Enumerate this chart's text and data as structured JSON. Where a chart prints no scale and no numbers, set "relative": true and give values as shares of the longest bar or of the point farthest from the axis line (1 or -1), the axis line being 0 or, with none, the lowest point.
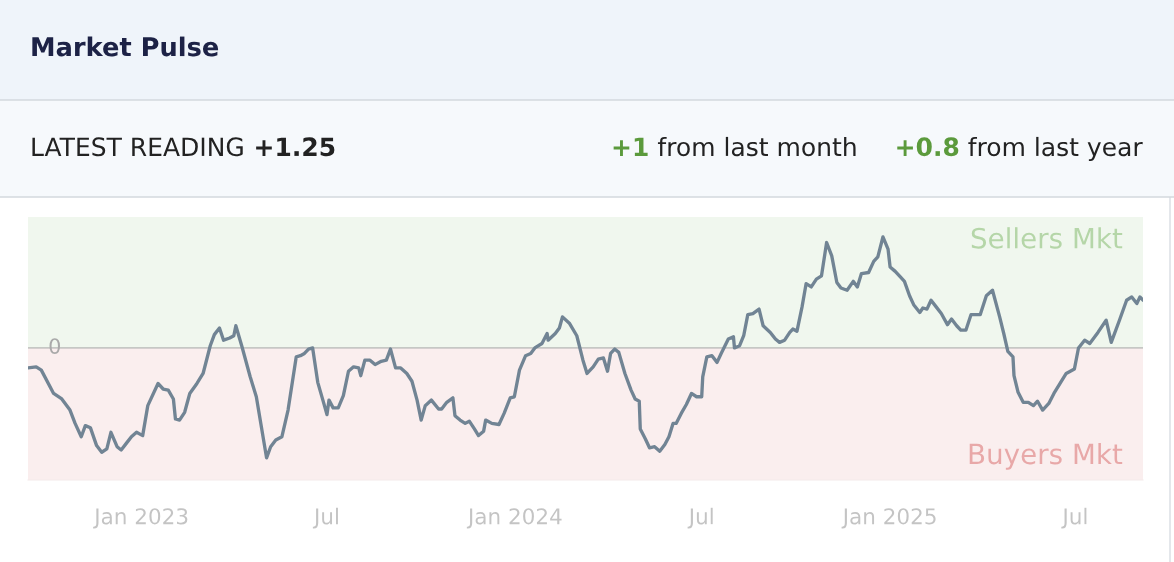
{
  "chart_data": {
    "type": "line",
    "title": "Market Pulse",
    "relative": true,
    "annotations": [
      "LATEST READING",
      "+1.25",
      "+1",
      "from last month",
      "+0.8",
      "from last year"
    ],
    "x": [
      "2022-09-12",
      "2022-09-20",
      "2022-09-25",
      "2022-10-07",
      "2022-10-15",
      "2022-10-23",
      "2022-10-28",
      "2022-11-03",
      "2022-11-07",
      "2022-11-12",
      "2022-11-18",
      "2022-11-23",
      "2022-11-28",
      "2022-12-02",
      "2022-12-08",
      "2022-12-12",
      "2022-12-17",
      "2022-12-22",
      "2022-12-27",
      "2023-01-02",
      "2023-01-07",
      "2023-01-17",
      "2023-01-22",
      "2023-01-27",
      "2023-02-01",
      "2023-02-03",
      "2023-02-07",
      "2023-02-12",
      "2023-02-17",
      "2023-02-24",
      "2023-03-02",
      "2023-03-09",
      "2023-03-13",
      "2023-03-18",
      "2023-03-22",
      "2023-03-28",
      "2023-04-01",
      "2023-04-03",
      "2023-04-09",
      "2023-04-17",
      "2023-04-23",
      "2023-05-03",
      "2023-05-07",
      "2023-05-12",
      "2023-05-18",
      "2023-05-24",
      "2023-06-01",
      "2023-06-05",
      "2023-06-09",
      "2023-06-13",
      "2023-06-17",
      "2023-06-22",
      "2023-06-27",
      "2023-07-01",
      "2023-07-03",
      "2023-07-07",
      "2023-07-12",
      "2023-07-17",
      "2023-07-22",
      "2023-07-27",
      "2023-08-01",
      "2023-08-03",
      "2023-08-07",
      "2023-08-12",
      "2023-08-17",
      "2023-08-23",
      "2023-08-28",
      "2023-09-01",
      "2023-09-06",
      "2023-09-11",
      "2023-09-17",
      "2023-09-22",
      "2023-09-27",
      "2023-10-01",
      "2023-10-05",
      "2023-10-11",
      "2023-10-18",
      "2023-10-21",
      "2023-10-26",
      "2023-11-01",
      "2023-11-03",
      "2023-11-08",
      "2023-11-13",
      "2023-11-17",
      "2023-11-22",
      "2023-11-26",
      "2023-12-01",
      "2023-12-03",
      "2023-12-09",
      "2023-12-16",
      "2023-12-21",
      "2023-12-27",
      "2023-12-31",
      "2024-01-05",
      "2024-01-11",
      "2024-01-16",
      "2024-01-20",
      "2024-01-27",
      "2024-02-01",
      "2024-02-02",
      "2024-02-09",
      "2024-02-13",
      "2024-02-16",
      "2024-02-23",
      "2024-03-01",
      "2024-03-07",
      "2024-03-11",
      "2024-03-17",
      "2024-03-22",
      "2024-03-27",
      "2024-03-31",
      "2024-04-03",
      "2024-04-07",
      "2024-04-11",
      "2024-04-17",
      "2024-04-23",
      "2024-04-27",
      "2024-05-01",
      "2024-05-02",
      "2024-05-07",
      "2024-05-11",
      "2024-05-16",
      "2024-05-21",
      "2024-05-26",
      "2024-05-30",
      "2024-06-03",
      "2024-06-06",
      "2024-06-11",
      "2024-06-16",
      "2024-06-21",
      "2024-06-26",
      "2024-07-01",
      "2024-07-02",
      "2024-07-06",
      "2024-07-11",
      "2024-07-16",
      "2024-07-20",
      "2024-07-27",
      "2024-08-01",
      "2024-08-02",
      "2024-08-07",
      "2024-08-11",
      "2024-08-15",
      "2024-08-20",
      "2024-08-26",
      "2024-08-30",
      "2024-09-06",
      "2024-09-11",
      "2024-09-15",
      "2024-09-20",
      "2024-09-25",
      "2024-09-28",
      "2024-10-02",
      "2024-10-07",
      "2024-10-11",
      "2024-10-16",
      "2024-10-21",
      "2024-10-26",
      "2024-10-31",
      "2024-11-05",
      "2024-11-10",
      "2024-11-14",
      "2024-11-20",
      "2024-11-26",
      "2024-11-30",
      "2024-12-04",
      "2024-12-11",
      "2024-12-16",
      "2024-12-20",
      "2024-12-25",
      "2024-12-30",
      "2025-01-01",
      "2025-01-06",
      "2025-01-11",
      "2025-01-15",
      "2025-01-20",
      "2025-01-24",
      "2025-01-30",
      "2025-02-02",
      "2025-02-06",
      "2025-02-10",
      "2025-02-15",
      "2025-02-20",
      "2025-02-26",
      "2025-03-02",
      "2025-03-07",
      "2025-03-11",
      "2025-03-16",
      "2025-03-21",
      "2025-03-30",
      "2025-04-05",
      "2025-04-11",
      "2025-04-18",
      "2025-04-22",
      "2025-04-26",
      "2025-05-01",
      "2025-05-02",
      "2025-05-06",
      "2025-05-11",
      "2025-05-16",
      "2025-05-21",
      "2025-05-25",
      "2025-05-30",
      "2025-06-05",
      "2025-06-10",
      "2025-06-16",
      "2025-06-22",
      "2025-06-30",
      "2025-07-04",
      "2025-07-10",
      "2025-07-15",
      "2025-07-23",
      "2025-07-31",
      "2025-08-05",
      "2025-08-13",
      "2025-08-20",
      "2025-08-25",
      "2025-08-30",
      "2025-09-02",
      "2025-09-05"
    ],
    "series": [
      {
        "color": "#718494",
        "line_style": "solid",
        "values": [
          -0.18,
          -0.17,
          -0.2,
          -0.41,
          -0.46,
          -0.56,
          -0.68,
          -0.8,
          -0.7,
          -0.72,
          -0.88,
          -0.94,
          -0.91,
          -0.76,
          -0.89,
          -0.92,
          -0.86,
          -0.8,
          -0.76,
          -0.79,
          -0.52,
          -0.32,
          -0.37,
          -0.38,
          -0.46,
          -0.64,
          -0.65,
          -0.58,
          -0.41,
          -0.32,
          -0.23,
          0.02,
          0.12,
          0.18,
          0.07,
          0.09,
          0.11,
          0.2,
          0.01,
          -0.26,
          -0.44,
          -0.99,
          -0.89,
          -0.83,
          -0.8,
          -0.56,
          -0.08,
          -0.07,
          -0.05,
          -0.01,
          0.0,
          -0.31,
          -0.47,
          -0.6,
          -0.47,
          -0.54,
          -0.54,
          -0.43,
          -0.21,
          -0.17,
          -0.18,
          -0.25,
          -0.11,
          -0.11,
          -0.15,
          -0.12,
          -0.11,
          -0.01,
          -0.18,
          -0.18,
          -0.23,
          -0.3,
          -0.47,
          -0.65,
          -0.52,
          -0.47,
          -0.55,
          -0.55,
          -0.49,
          -0.45,
          -0.61,
          -0.65,
          -0.68,
          -0.66,
          -0.73,
          -0.79,
          -0.75,
          -0.65,
          -0.68,
          -0.69,
          -0.59,
          -0.45,
          -0.44,
          -0.2,
          -0.07,
          -0.05,
          0.0,
          0.04,
          0.13,
          0.07,
          0.13,
          0.18,
          0.28,
          0.22,
          0.11,
          -0.11,
          -0.23,
          -0.17,
          -0.1,
          -0.09,
          -0.21,
          -0.05,
          -0.01,
          -0.04,
          -0.23,
          -0.38,
          -0.46,
          -0.48,
          -0.73,
          -0.82,
          -0.9,
          -0.89,
          -0.93,
          -0.87,
          -0.8,
          -0.68,
          -0.68,
          -0.59,
          -0.51,
          -0.41,
          -0.44,
          -0.44,
          -0.26,
          -0.08,
          -0.07,
          -0.13,
          -0.05,
          0.08,
          0.1,
          0.0,
          0.02,
          0.11,
          0.3,
          0.31,
          0.35,
          0.2,
          0.14,
          0.08,
          0.05,
          0.07,
          0.14,
          0.17,
          0.15,
          0.37,
          0.58,
          0.55,
          0.62,
          0.65,
          0.95,
          0.83,
          0.59,
          0.54,
          0.52,
          0.6,
          0.55,
          0.67,
          0.68,
          0.78,
          0.82,
          1.0,
          0.89,
          0.73,
          0.69,
          0.64,
          0.6,
          0.47,
          0.39,
          0.32,
          0.36,
          0.35,
          0.43,
          0.37,
          0.31,
          0.21,
          0.26,
          0.2,
          0.16,
          0.16,
          0.3,
          0.3,
          0.47,
          0.52,
          0.28,
          0.13,
          -0.03,
          -0.08,
          -0.25,
          -0.4,
          -0.49,
          -0.49,
          -0.52,
          -0.48,
          -0.56,
          -0.5,
          -0.41,
          -0.32,
          -0.23,
          -0.19,
          0.0,
          0.07,
          0.04,
          0.14,
          0.25,
          0.05,
          0.25,
          0.43,
          0.46,
          0.4,
          0.46,
          0.43
        ]
      }
    ],
    "xlim": [
      "2022-09-12",
      "2025-09-05"
    ],
    "xticks": [
      {
        "value": "2023-01-01",
        "label": "Jan 2023"
      },
      {
        "value": "2023-07-01",
        "label": "Jul"
      },
      {
        "value": "2024-01-01",
        "label": "Jan 2024"
      },
      {
        "value": "2024-07-01",
        "label": "Jul"
      },
      {
        "value": "2025-01-01",
        "label": "Jan 2025"
      },
      {
        "value": "2025-07-01",
        "label": "Jul"
      }
    ],
    "ref_lines": [
      {
        "axis": "y",
        "value": 0,
        "label": "0",
        "color": "#a9a9a9"
      }
    ],
    "bands": [
      {
        "axis": "y",
        "from": 0,
        "to": 1.18,
        "label": "Sellers Mkt",
        "color": "#b5d6a8"
      },
      {
        "axis": "y",
        "from": -1.19,
        "to": 0,
        "label": "Buyers Mkt",
        "color": "#e8a8a8"
      }
    ],
    "tick_labels": "x",
    "grid": false
  }
}
